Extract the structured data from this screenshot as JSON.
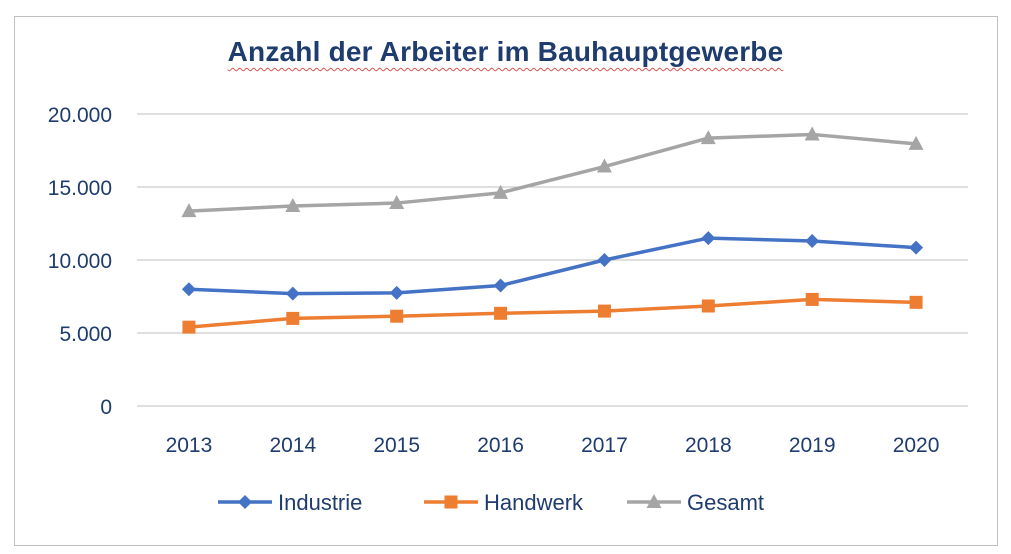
{
  "chart_data": {
    "type": "line",
    "title": "Anzahl der Arbeiter im Bauhauptgewerbe",
    "categories": [
      "2013",
      "2014",
      "2015",
      "2016",
      "2017",
      "2018",
      "2019",
      "2020"
    ],
    "ylim": [
      0,
      20000
    ],
    "yticks": [
      0,
      5000,
      10000,
      15000,
      20000
    ],
    "ytick_labels": [
      "0",
      "5.000",
      "10.000",
      "15.000",
      "20.000"
    ],
    "grid": true,
    "legend_position": "bottom",
    "series": [
      {
        "name": "Industrie",
        "color": "#4472c4",
        "marker": "diamond",
        "values": [
          8000,
          7700,
          7750,
          8250,
          10000,
          11500,
          11300,
          10850
        ]
      },
      {
        "name": "Handwerk",
        "color": "#ed7d31",
        "marker": "square",
        "values": [
          5400,
          6000,
          6150,
          6350,
          6500,
          6850,
          7300,
          7100
        ]
      },
      {
        "name": "Gesamt",
        "color": "#a5a5a5",
        "marker": "triangle",
        "values": [
          13350,
          13700,
          13900,
          14600,
          16400,
          18350,
          18600,
          17950
        ]
      }
    ]
  }
}
